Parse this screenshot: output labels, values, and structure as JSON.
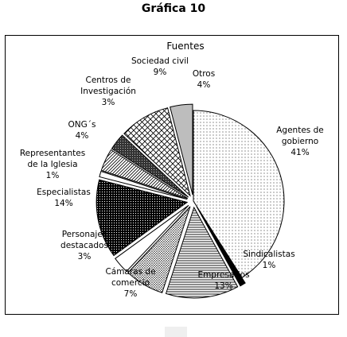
{
  "page": {
    "heading": "Gráfica 10"
  },
  "chart_data": {
    "type": "pie",
    "title": "Fuentes",
    "start_angle_deg": 0,
    "direction": "clockwise",
    "slices": [
      {
        "label": [
          "Agentes de",
          "gobierno"
        ],
        "percent_text": "41%",
        "value": 41,
        "pattern": "dots",
        "exploded": false
      },
      {
        "label": [
          "Sindicalistas"
        ],
        "percent_text": "1%",
        "value": 1,
        "pattern": "solid-black",
        "exploded": true
      },
      {
        "label": [
          "Empresarios"
        ],
        "percent_text": "13%",
        "value": 13,
        "pattern": "hlines",
        "exploded": true
      },
      {
        "label": [
          "Cámaras de",
          "comercio"
        ],
        "percent_text": "7%",
        "value": 7,
        "pattern": "dense-dots",
        "exploded": true
      },
      {
        "label": [
          "Personajes",
          "destacados"
        ],
        "percent_text": "3%",
        "value": 3,
        "pattern": "white",
        "exploded": true
      },
      {
        "label": [
          "Especialistas"
        ],
        "percent_text": "14%",
        "value": 14,
        "pattern": "dark-dots",
        "exploded": true
      },
      {
        "label": [
          "Representantes",
          "de la Iglesia"
        ],
        "percent_text": "1%",
        "value": 1,
        "pattern": "white",
        "exploded": true
      },
      {
        "label": [
          "ONG´s"
        ],
        "percent_text": "4%",
        "value": 4,
        "pattern": "diag",
        "exploded": true
      },
      {
        "label": [
          "Centros de",
          "Investigación"
        ],
        "percent_text": "3%",
        "value": 3,
        "pattern": "dark-grid",
        "exploded": true
      },
      {
        "label": [
          "Sociedad civil"
        ],
        "percent_text": "9%",
        "value": 9,
        "pattern": "crosshatch",
        "exploded": true
      },
      {
        "label": [
          "Otros"
        ],
        "percent_text": "4%",
        "value": 4,
        "pattern": "solid-gray",
        "exploded": true
      }
    ]
  }
}
